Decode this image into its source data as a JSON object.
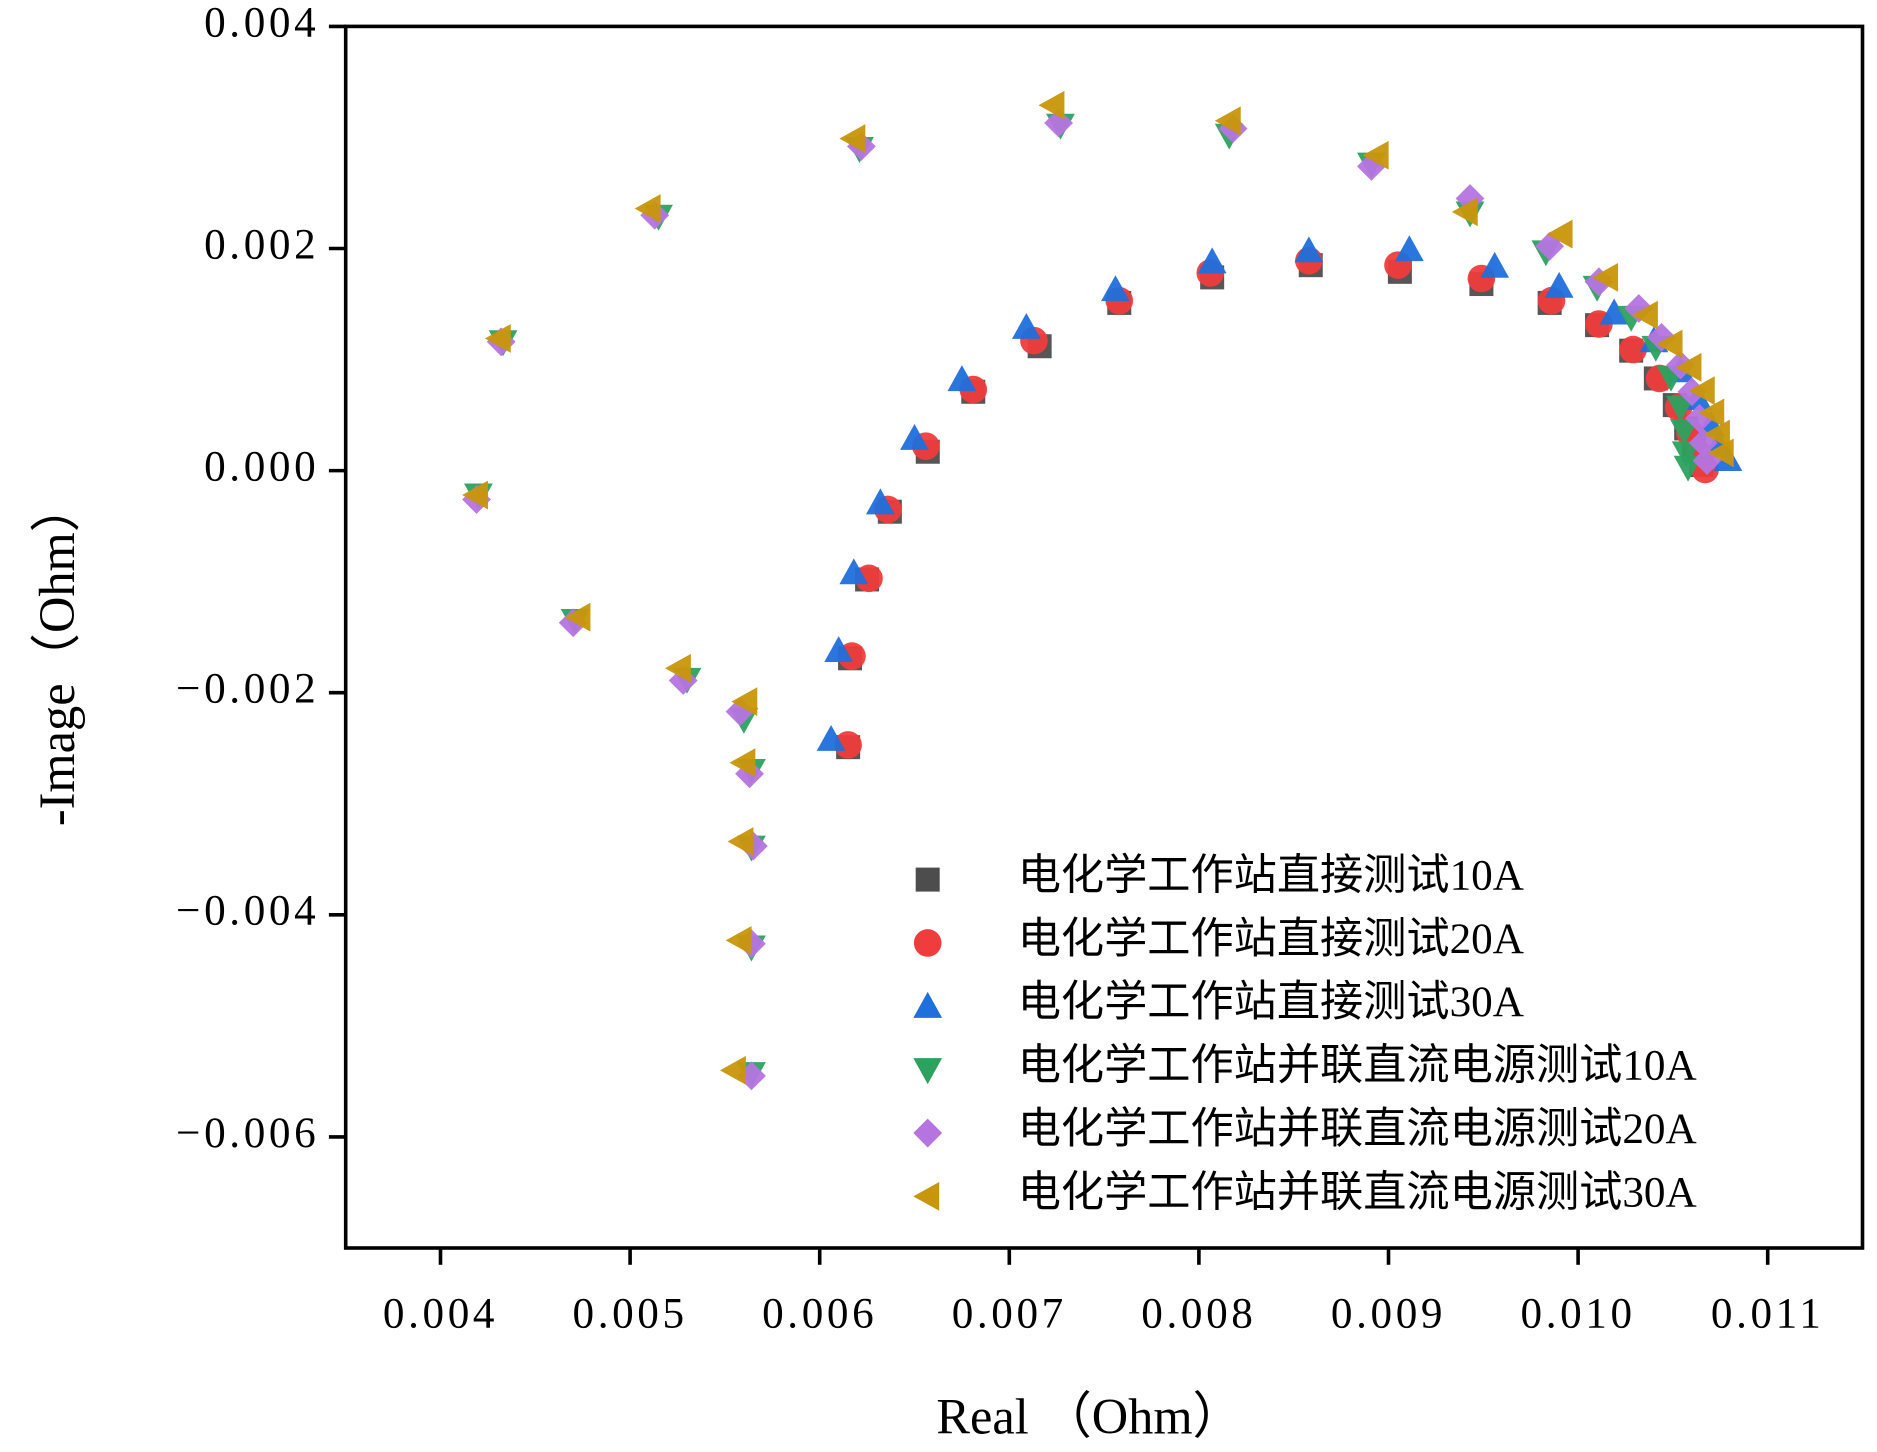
{
  "chart_data": {
    "type": "scatter",
    "xlabel": "Real （Ohm）",
    "ylabel": "-Image（Ohm）",
    "xlim": [
      0.0035,
      0.0115
    ],
    "ylim": [
      -0.007,
      0.004
    ],
    "xticks": [
      0.004,
      0.005,
      0.006,
      0.007,
      0.008,
      0.009,
      {
        "value": 0.01,
        "label": "0.010"
      },
      0.011
    ],
    "yticks": [
      {
        "value": -0.006,
        "label": "−0.006"
      },
      {
        "value": -0.004,
        "label": "−0.004"
      },
      {
        "value": -0.002,
        "label": "−0.002"
      },
      {
        "value": 0,
        "label": "0.000"
      },
      0.002,
      0.004
    ],
    "legend": "lower right",
    "series": [
      {
        "name": "电化学工作站直接测试10A",
        "color": "#4d4d4d",
        "label_color": "#000000",
        "marker": "square",
        "x": [
          0.00615,
          0.00616,
          0.00625,
          0.00637,
          0.00657,
          0.00681,
          0.00716,
          0.00758,
          0.00807,
          0.00859,
          0.00906,
          0.00949,
          0.00985,
          0.0101,
          0.01028,
          0.01041,
          0.01051,
          0.01057,
          0.01061,
          0.01065
        ],
        "values": [
          -0.00249,
          -0.00169,
          -0.00098,
          -0.00037,
          0.00017,
          0.00071,
          0.00112,
          0.00151,
          0.00174,
          0.00185,
          0.00179,
          0.00168,
          0.00151,
          0.00131,
          0.00108,
          0.00083,
          0.00059,
          0.00038,
          0.00019,
          5e-05
        ]
      },
      {
        "name": "电化学工作站直接测试20A",
        "color": "#f03c3c",
        "label_color": "#f03c3c",
        "marker": "circle",
        "x": [
          0.00615,
          0.00617,
          0.00626,
          0.00636,
          0.00656,
          0.00681,
          0.00713,
          0.00758,
          0.00806,
          0.00858,
          0.00905,
          0.00949,
          0.00986,
          0.01011,
          0.01029,
          0.01043,
          0.01053,
          0.01059,
          0.01064,
          0.01067
        ],
        "values": [
          -0.00247,
          -0.00167,
          -0.00097,
          -0.00035,
          0.00022,
          0.00073,
          0.00117,
          0.00153,
          0.00178,
          0.00189,
          0.00185,
          0.00173,
          0.00153,
          0.00132,
          0.00109,
          0.00083,
          0.00057,
          0.00034,
          0.00014,
          1e-05
        ]
      },
      {
        "name": "电化学工作站直接测试30A",
        "color": "#1f6fdc",
        "label_color": "#1a1ae0",
        "marker": "triangle-up",
        "x": [
          0.00606,
          0.0061,
          0.00618,
          0.00632,
          0.0065,
          0.00675,
          0.00709,
          0.00756,
          0.00807,
          0.00858,
          0.00911,
          0.00956,
          0.0099,
          0.01019,
          0.0104,
          0.01054,
          0.01063,
          0.0107,
          0.01074,
          0.01079
        ],
        "values": [
          -0.00242,
          -0.00162,
          -0.00092,
          -0.00029,
          0.00029,
          0.00082,
          0.00129,
          0.00163,
          0.00188,
          0.00198,
          0.00199,
          0.00184,
          0.00166,
          0.00142,
          0.00117,
          0.0009,
          0.00065,
          0.00041,
          0.00023,
          0.0001
        ]
      },
      {
        "name": "电化学工作站并联直流电源测试10A",
        "color": "#2ca25f",
        "label_color": "#1e8c2a",
        "marker": "triangle-down",
        "x": [
          0.00564,
          0.00564,
          0.00564,
          0.00564,
          0.0056,
          0.0053,
          0.00471,
          0.0042,
          0.00433,
          0.00515,
          0.00621,
          0.00727,
          0.00816,
          0.00891,
          0.00943,
          0.00983,
          0.0101,
          0.01028,
          0.01041,
          0.01049,
          0.01054,
          0.01056,
          0.01057,
          0.01058
        ],
        "values": [
          -0.00543,
          -0.00429,
          -0.00339,
          -0.0027,
          -0.00224,
          -0.00188,
          -0.00135,
          -0.00022,
          0.00116,
          0.00229,
          0.0029,
          0.00311,
          0.00302,
          0.00276,
          0.00232,
          0.00197,
          0.00165,
          0.00138,
          0.00111,
          0.00084,
          0.00057,
          0.00036,
          0.00016,
          3e-05
        ]
      },
      {
        "name": "电化学工作站并联直流电源测试20A",
        "color": "#b574e0",
        "label_color": "#a033d0",
        "marker": "diamond",
        "x": [
          0.00564,
          0.00564,
          0.00565,
          0.00563,
          0.00558,
          0.00528,
          0.0047,
          0.00419,
          0.00432,
          0.00513,
          0.00622,
          0.00726,
          0.00818,
          0.00891,
          0.00943,
          0.00985,
          0.01011,
          0.01032,
          0.01044,
          0.01054,
          0.0106,
          0.01064,
          0.01066,
          0.01068
        ],
        "values": [
          -0.00545,
          -0.00426,
          -0.00338,
          -0.00273,
          -0.00217,
          -0.00189,
          -0.00137,
          -0.00026,
          0.00116,
          0.0023,
          0.00292,
          0.00313,
          0.00308,
          0.00274,
          0.00245,
          0.00202,
          0.0017,
          0.00146,
          0.0012,
          0.00095,
          0.00071,
          0.00047,
          0.00025,
          9e-05
        ]
      },
      {
        "name": "电化学工作站并联直流电源测试30A",
        "color": "#c8960a",
        "label_color": "#e8873a",
        "marker": "triangle-left",
        "x": [
          0.00555,
          0.00558,
          0.00559,
          0.0056,
          0.00561,
          0.00526,
          0.00473,
          0.00419,
          0.00431,
          0.0051,
          0.00618,
          0.00723,
          0.00816,
          0.00894,
          0.00941,
          0.00991,
          0.01015,
          0.01036,
          0.01049,
          0.01059,
          0.01066,
          0.01071,
          0.01074,
          0.01076
        ],
        "values": [
          -0.0054,
          -0.00423,
          -0.00334,
          -0.00263,
          -0.00208,
          -0.00178,
          -0.00132,
          -0.00022,
          0.00119,
          0.00236,
          0.00299,
          0.00329,
          0.00315,
          0.00284,
          0.00233,
          0.00213,
          0.00174,
          0.0014,
          0.00114,
          0.00093,
          0.00072,
          0.00052,
          0.00033,
          0.00016
        ]
      }
    ]
  }
}
